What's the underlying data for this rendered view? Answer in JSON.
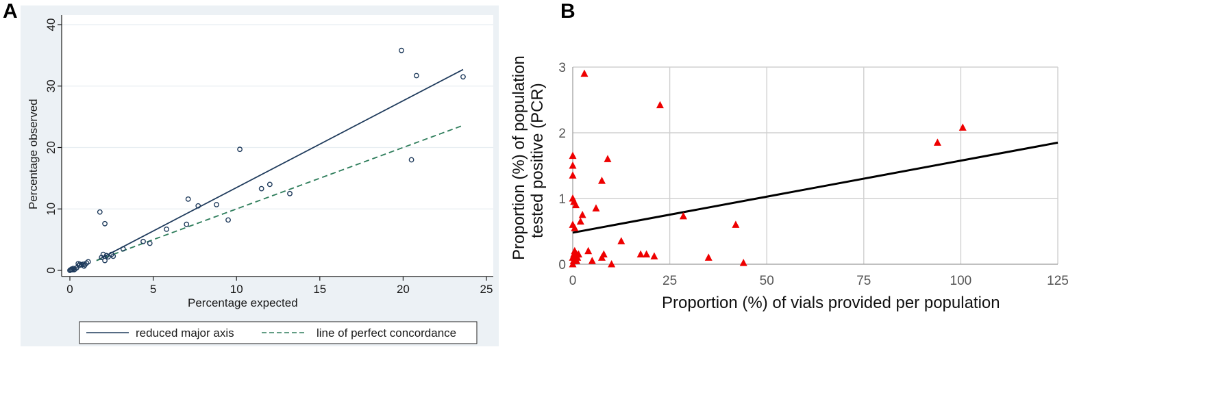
{
  "figure": {
    "label_a": "A",
    "label_b": "B"
  },
  "chart_data": [
    {
      "panel": "A",
      "type": "scatter",
      "title": "",
      "xlabel": "Percentage expected",
      "ylabel": "Percentage observed",
      "xlim": [
        0,
        25
      ],
      "ylim": [
        0,
        40
      ],
      "xticks": [
        0,
        5,
        10,
        15,
        20,
        25
      ],
      "yticks": [
        0,
        10,
        20,
        30,
        40
      ],
      "grid": true,
      "colors": {
        "rma": "#1f3b5c",
        "concordance": "#2e7d5b",
        "points": "#1f3b5c",
        "grid": "#e8eef2"
      },
      "points": {
        "x": [
          0.0,
          0.05,
          0.1,
          0.15,
          0.2,
          0.25,
          0.3,
          0.4,
          0.5,
          0.55,
          0.6,
          0.7,
          0.8,
          0.85,
          0.9,
          1.0,
          1.1,
          1.8,
          1.9,
          2.0,
          2.1,
          2.1,
          2.2,
          2.3,
          2.5,
          2.6,
          3.2,
          4.4,
          4.8,
          5.8,
          7.0,
          7.1,
          7.7,
          8.8,
          9.5,
          10.2,
          11.5,
          12.0,
          13.2,
          19.9,
          20.5,
          20.8,
          23.6
        ],
        "y": [
          0.0,
          0.1,
          0.2,
          0.1,
          0.3,
          0.1,
          0.2,
          0.4,
          1.1,
          0.8,
          1.0,
          0.9,
          1.0,
          0.7,
          0.9,
          1.2,
          1.4,
          9.5,
          2.1,
          2.6,
          7.6,
          1.6,
          2.4,
          2.2,
          2.6,
          2.3,
          3.5,
          4.7,
          4.4,
          6.7,
          7.5,
          11.6,
          10.5,
          10.7,
          8.2,
          19.7,
          13.3,
          14.0,
          12.5,
          35.8,
          18.0,
          31.7,
          31.5
        ]
      },
      "series": [
        {
          "name": "reduced major axis",
          "style": "solid",
          "x": [
            1.6,
            23.6
          ],
          "y": [
            1.6,
            32.7
          ]
        },
        {
          "name": "line of perfect concordance",
          "style": "dashed",
          "x": [
            1.6,
            23.6
          ],
          "y": [
            1.6,
            23.6
          ]
        }
      ],
      "legend": {
        "placement": "bottom",
        "entries": [
          "reduced major axis",
          "line of perfect concordance"
        ]
      }
    },
    {
      "panel": "B",
      "type": "scatter",
      "title": "",
      "xlabel": "Proportion (%) of vials provided per population",
      "ylabel_line1": "Proportion (%) of population",
      "ylabel_line2": "tested positive (PCR)",
      "xlim": [
        0,
        125
      ],
      "ylim": [
        0,
        3
      ],
      "xticks": [
        0,
        25,
        50,
        75,
        100,
        125
      ],
      "yticks": [
        0,
        1,
        2,
        3
      ],
      "grid": true,
      "colors": {
        "points": "#ee0000",
        "trend": "#000000",
        "grid": "#d0d0d0"
      },
      "points": {
        "x": [
          0.0,
          0.0,
          0.0,
          0.0,
          0.0,
          0.0,
          0.0,
          0.2,
          0.3,
          0.3,
          0.5,
          0.5,
          0.5,
          0.8,
          1.0,
          1.0,
          1.2,
          1.5,
          2.0,
          2.5,
          3.0,
          4.0,
          5.0,
          6.0,
          7.5,
          7.5,
          8.0,
          9.0,
          10.0,
          12.5,
          17.5,
          19.0,
          21.0,
          22.5,
          28.5,
          35.0,
          42.0,
          44.0,
          94.0,
          100.5
        ],
        "y": [
          0.0,
          0.1,
          0.6,
          1.0,
          1.35,
          1.5,
          1.65,
          0.05,
          0.15,
          0.95,
          0.1,
          0.2,
          0.55,
          0.9,
          0.05,
          0.15,
          0.1,
          0.15,
          0.65,
          0.75,
          2.9,
          0.2,
          0.05,
          0.85,
          0.1,
          1.27,
          0.15,
          1.6,
          0.0,
          0.35,
          0.15,
          0.15,
          0.12,
          2.42,
          0.73,
          0.1,
          0.6,
          0.02,
          1.85,
          2.08
        ]
      },
      "series": [
        {
          "name": "trend",
          "style": "solid",
          "x": [
            0,
            125
          ],
          "y": [
            0.48,
            1.85
          ]
        }
      ]
    }
  ]
}
